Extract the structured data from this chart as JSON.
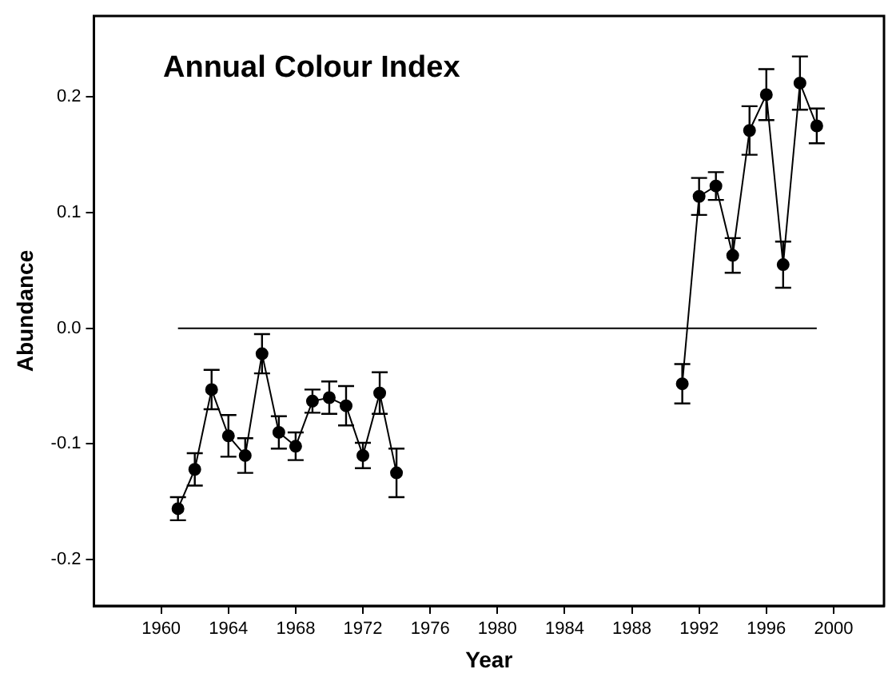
{
  "chart_data": {
    "type": "line",
    "title": "Annual Colour Index",
    "xlabel": "Year",
    "ylabel": "Abundance",
    "xlim": [
      1956,
      2003
    ],
    "xticks": [
      1960,
      1964,
      1968,
      1972,
      1976,
      1980,
      1984,
      1988,
      1992,
      1996,
      2000
    ],
    "ylim": [
      -0.24,
      0.27
    ],
    "yticks": [
      {
        "value": -0.2,
        "label": "-0.2"
      },
      {
        "value": -0.1,
        "label": "-0.1"
      },
      {
        "value": 0,
        "label": "0.0"
      },
      {
        "value": 0.1,
        "label": "0.1"
      },
      {
        "value": 0.2,
        "label": "0.2"
      }
    ],
    "grid": false,
    "legend": false,
    "marker": "circle",
    "line_style": "solid",
    "series": [
      {
        "color": "#000000",
        "x": [
          1961,
          1962,
          1963,
          1964,
          1965,
          1966,
          1967,
          1968,
          1969,
          1970,
          1971,
          1972,
          1973,
          1974
        ],
        "values": [
          -0.156,
          -0.122,
          -0.053,
          -0.093,
          -0.11,
          -0.022,
          -0.09,
          -0.102,
          -0.063,
          -0.06,
          -0.067,
          -0.11,
          -0.056,
          -0.125
        ],
        "errors": [
          0.01,
          0.014,
          0.017,
          0.018,
          0.015,
          0.017,
          0.014,
          0.012,
          0.01,
          0.014,
          0.017,
          0.011,
          0.018,
          0.021
        ]
      },
      {
        "color": "#000000",
        "x": [
          1991,
          1992,
          1993,
          1994,
          1995,
          1996,
          1997,
          1998,
          1999
        ],
        "values": [
          -0.048,
          0.114,
          0.123,
          0.063,
          0.171,
          0.202,
          0.055,
          0.212,
          0.175
        ],
        "errors": [
          0.017,
          0.016,
          0.012,
          0.015,
          0.021,
          0.022,
          0.02,
          0.023,
          0.015
        ]
      },
      {
        "color": "#000000",
        "x": [
          1961,
          1999
        ],
        "values": [
          0,
          0
        ],
        "marker": "none"
      }
    ]
  }
}
